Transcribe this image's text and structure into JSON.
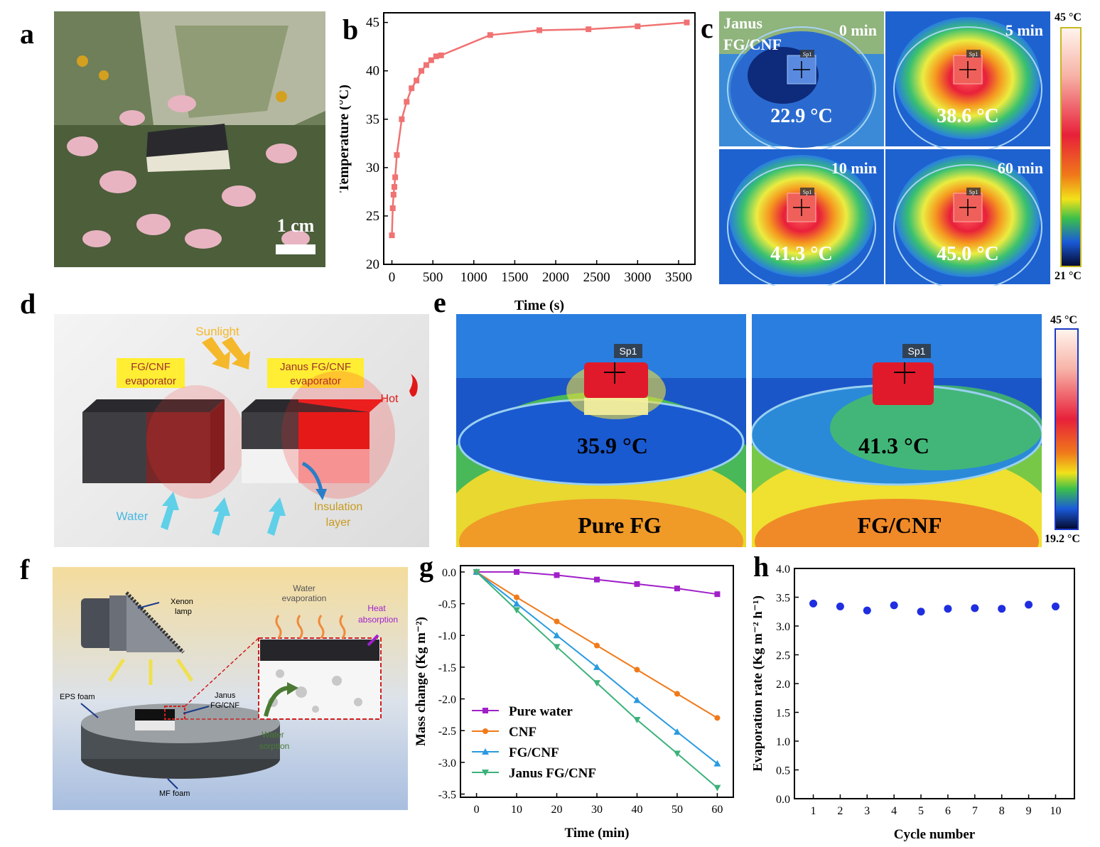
{
  "panel_labels": {
    "a": "a",
    "b": "b",
    "c": "c",
    "d": "d",
    "e": "e",
    "f": "f",
    "g": "g",
    "h": "h"
  },
  "panel_a": {
    "scale_bar": "1 cm"
  },
  "panel_c": {
    "sample_label_line1": "Janus",
    "sample_label_line2": "FG/CNF",
    "frames": [
      {
        "time": "0 min",
        "temp": "22.9 °C",
        "spot": "Sp1"
      },
      {
        "time": "5 min",
        "temp": "38.6 °C",
        "spot": "Sp1"
      },
      {
        "time": "10 min",
        "temp": "41.3 °C",
        "spot": "Sp1"
      },
      {
        "time": "60 min",
        "temp": "45.0 °C",
        "spot": "Sp1"
      }
    ],
    "colorbar_max": "45 °C",
    "colorbar_min": "21 °C"
  },
  "panel_d": {
    "sunlight": "Sunlight",
    "fg_cnf_label_1": "FG/CNF",
    "fg_cnf_label_2": "evaporator",
    "janus_label_1": "Janus FG/CNF",
    "janus_label_2": "evaporator",
    "hot": "Hot",
    "water": "Water",
    "insulation_1": "Insulation",
    "insulation_2": "layer"
  },
  "panel_e": {
    "left": {
      "spot": "Sp1",
      "temp": "35.9 °C",
      "name": "Pure FG"
    },
    "right": {
      "spot": "Sp1",
      "temp": "41.3 °C",
      "name": "FG/CNF"
    },
    "colorbar_max": "45 °C",
    "colorbar_min": "19.2 °C"
  },
  "panel_f": {
    "xenon_1": "Xenon",
    "xenon_2": "lamp",
    "water_evap_1": "Water",
    "water_evap_2": "evaporation",
    "heat_1": "Heat",
    "heat_2": "absorption",
    "eps": "EPS foam",
    "janus_1": "Janus",
    "janus_2": "FG/CNF",
    "water_sorp_1": "Water",
    "water_sorp_2": "sorption",
    "mf": "MF foam"
  },
  "chart_data": [
    {
      "id": "b",
      "type": "line",
      "xlabel": "Time (s)",
      "ylabel": "Temperature (°C)",
      "xlim": [
        -100,
        3700
      ],
      "ylim": [
        20,
        46
      ],
      "xticks": [
        0,
        500,
        1000,
        1500,
        2000,
        2500,
        3000,
        3500
      ],
      "yticks": [
        20,
        25,
        30,
        35,
        40,
        45
      ],
      "color": "#f07272",
      "x": [
        0,
        10,
        20,
        30,
        40,
        60,
        120,
        180,
        240,
        300,
        360,
        420,
        480,
        540,
        600,
        1200,
        1800,
        2400,
        3000,
        3600
      ],
      "y": [
        23.0,
        25.8,
        27.2,
        28.0,
        29.0,
        31.3,
        35.0,
        36.8,
        38.2,
        39.0,
        40.0,
        40.6,
        41.1,
        41.5,
        41.6,
        43.7,
        44.2,
        44.3,
        44.6,
        45.0
      ]
    },
    {
      "id": "g",
      "type": "line",
      "xlabel": "Time (min)",
      "ylabel": "Mass change (Kg m⁻²)",
      "xlim": [
        -4,
        64
      ],
      "ylim": [
        -3.55,
        0.1
      ],
      "xticks": [
        0,
        10,
        20,
        30,
        40,
        50,
        60
      ],
      "yticks": [
        0.0,
        -0.5,
        -1.0,
        -1.5,
        -2.0,
        -2.5,
        -3.0,
        -3.5
      ],
      "ytick_labels": [
        "0.0",
        "-0.5",
        "-1.0",
        "-1.5",
        "-2.0",
        "-2.5",
        "-3.0",
        "-3.5"
      ],
      "x": [
        0,
        10,
        20,
        30,
        40,
        50,
        60
      ],
      "series": [
        {
          "name": "Pure water",
          "color": "#a020c8",
          "marker": "square",
          "values": [
            0,
            0,
            -0.05,
            -0.12,
            -0.19,
            -0.26,
            -0.35
          ]
        },
        {
          "name": "CNF",
          "color": "#f07a1a",
          "marker": "circle",
          "values": [
            0,
            -0.4,
            -0.78,
            -1.16,
            -1.54,
            -1.92,
            -2.3
          ]
        },
        {
          "name": "FG/CNF",
          "color": "#2a9ae0",
          "marker": "triangle-up",
          "values": [
            0,
            -0.5,
            -1.0,
            -1.5,
            -2.02,
            -2.52,
            -3.02
          ]
        },
        {
          "name": "Janus FG/CNF",
          "color": "#3cb27a",
          "marker": "triangle-down",
          "values": [
            0,
            -0.6,
            -1.18,
            -1.75,
            -2.33,
            -2.86,
            -3.4
          ]
        }
      ]
    },
    {
      "id": "h",
      "type": "scatter",
      "xlabel": "Cycle number",
      "ylabel": "Evaporation rate (Kg m⁻² h⁻¹)",
      "xlim": [
        0.3,
        10.7
      ],
      "ylim": [
        0,
        4.0
      ],
      "xticks": [
        1,
        2,
        3,
        4,
        5,
        6,
        7,
        8,
        9,
        10
      ],
      "yticks": [
        0.0,
        0.5,
        1.0,
        1.5,
        2.0,
        2.5,
        3.0,
        3.5,
        4.0
      ],
      "ytick_labels": [
        "0.0",
        "0.5",
        "1.0",
        "1.5",
        "2.0",
        "2.5",
        "3.0",
        "3.5",
        "4.0"
      ],
      "color": "#1f2ee0",
      "x": [
        1,
        2,
        3,
        4,
        5,
        6,
        7,
        8,
        9,
        10
      ],
      "y": [
        3.39,
        3.34,
        3.27,
        3.36,
        3.25,
        3.3,
        3.31,
        3.3,
        3.37,
        3.34
      ]
    }
  ]
}
